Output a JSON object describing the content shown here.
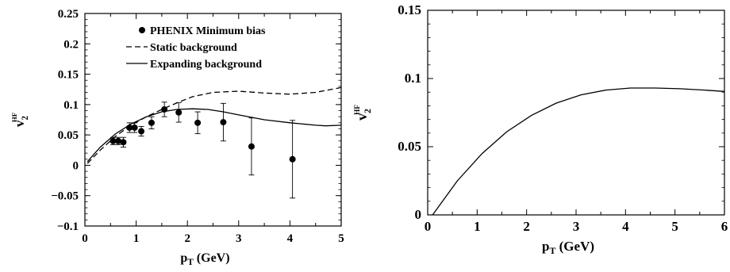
{
  "chart_data": [
    {
      "type": "line",
      "xlabel": "p",
      "xlabel_sub": "T",
      "xlabel_unit": " (GeV)",
      "ylabel": "v",
      "ylabel_sub": "2",
      "ylabel_sup": "HF",
      "xlim": [
        0,
        5
      ],
      "ylim": [
        -0.1,
        0.25
      ],
      "xticks": [
        0,
        1,
        2,
        3,
        4,
        5
      ],
      "yticks": [
        -0.1,
        -0.05,
        0,
        0.05,
        0.1,
        0.15,
        0.2,
        0.25
      ],
      "xtick_labels": [
        "0",
        "1",
        "2",
        "3",
        "4",
        "5"
      ],
      "ytick_labels": [
        "−0.1",
        "−0.05",
        "0",
        "0.05",
        "0.1",
        "0.15",
        "0.2",
        "0.25"
      ],
      "legend_position": "top-left",
      "series": [
        {
          "name": "PHENIX Minimum bias",
          "style": "points",
          "x": [
            0.55,
            0.65,
            0.75,
            0.87,
            0.97,
            1.1,
            1.3,
            1.55,
            1.83,
            2.2,
            2.7,
            3.25,
            4.05
          ],
          "y": [
            0.04,
            0.04,
            0.038,
            0.062,
            0.062,
            0.056,
            0.07,
            0.092,
            0.087,
            0.07,
            0.071,
            0.031,
            0.01
          ],
          "err": [
            0.006,
            0.006,
            0.008,
            0.008,
            0.008,
            0.008,
            0.01,
            0.012,
            0.016,
            0.018,
            0.031,
            0.047,
            0.064
          ]
        },
        {
          "name": "Static background",
          "style": "dashed",
          "x": [
            0.05,
            0.3,
            0.6,
            0.9,
            1.2,
            1.5,
            1.8,
            2.1,
            2.5,
            3.0,
            3.5,
            4.0,
            4.5,
            5.0
          ],
          "y": [
            0.003,
            0.025,
            0.048,
            0.066,
            0.08,
            0.092,
            0.103,
            0.113,
            0.12,
            0.122,
            0.119,
            0.117,
            0.12,
            0.128
          ]
        },
        {
          "name": "Expanding background",
          "style": "solid",
          "x": [
            0.05,
            0.3,
            0.6,
            0.9,
            1.2,
            1.5,
            1.8,
            2.1,
            2.4,
            2.7,
            3.0,
            3.5,
            4.0,
            4.5,
            4.7,
            5.0
          ],
          "y": [
            0.006,
            0.03,
            0.052,
            0.068,
            0.08,
            0.088,
            0.092,
            0.093,
            0.092,
            0.088,
            0.083,
            0.075,
            0.07,
            0.066,
            0.065,
            0.066
          ]
        }
      ]
    },
    {
      "type": "line",
      "xlabel": "p",
      "xlabel_sub": "T",
      "xlabel_unit": " (GeV)",
      "ylabel": "v",
      "ylabel_sub": "2",
      "ylabel_sup": "HF",
      "xlim": [
        0,
        6
      ],
      "ylim": [
        0,
        0.15
      ],
      "xticks": [
        0,
        1,
        2,
        3,
        4,
        5,
        6
      ],
      "yticks": [
        0,
        0.05,
        0.1,
        0.15
      ],
      "xtick_labels": [
        "0",
        "1",
        "2",
        "3",
        "4",
        "5",
        "6"
      ],
      "ytick_labels": [
        "0",
        "0.05",
        "0.1",
        "0.15"
      ],
      "series": [
        {
          "style": "solid",
          "x": [
            0.1,
            0.6,
            1.1,
            1.6,
            2.1,
            2.6,
            3.1,
            3.6,
            4.1,
            4.6,
            5.1,
            5.6,
            6.0
          ],
          "y": [
            0.0,
            0.025,
            0.045,
            0.061,
            0.073,
            0.082,
            0.088,
            0.0915,
            0.093,
            0.093,
            0.0925,
            0.0915,
            0.0905
          ]
        }
      ]
    }
  ]
}
